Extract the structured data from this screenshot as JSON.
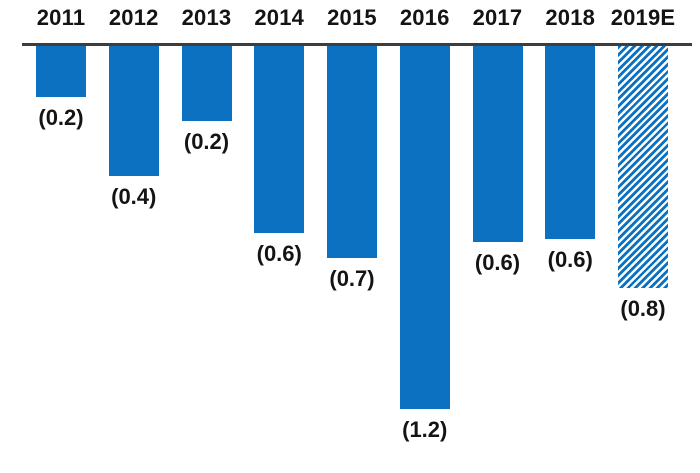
{
  "chart_data": {
    "type": "bar",
    "orientation": "vertical",
    "direction": "negative-below-axis",
    "categories": [
      "2011",
      "2012",
      "2013",
      "2014",
      "2015",
      "2016",
      "2017",
      "2018",
      "2019E"
    ],
    "values": [
      -0.2,
      -0.4,
      -0.2,
      -0.6,
      -0.7,
      -1.2,
      -0.6,
      -0.6,
      -0.8
    ],
    "data_labels": [
      "(0.2)",
      "(0.4)",
      "(0.2)",
      "(0.6)",
      "(0.7)",
      "(1.2)",
      "(0.6)",
      "(0.6)",
      "(0.8)"
    ],
    "render_values": [
      -0.17,
      -0.43,
      -0.25,
      -0.62,
      -0.7,
      -1.2,
      -0.65,
      -0.64,
      -0.8
    ],
    "bar_styles": [
      "solid",
      "solid",
      "solid",
      "solid",
      "solid",
      "solid",
      "solid",
      "solid",
      "hatched"
    ],
    "title": "",
    "xlabel": "",
    "ylabel": "",
    "ylim": [
      -1.3,
      0
    ],
    "grid": false,
    "legend": false,
    "axis_position": "top",
    "colors": {
      "bar": "#0b71c0",
      "axis_line": "#3d3d3d",
      "text": "#141414",
      "hatch_background": "#ffffff"
    }
  }
}
